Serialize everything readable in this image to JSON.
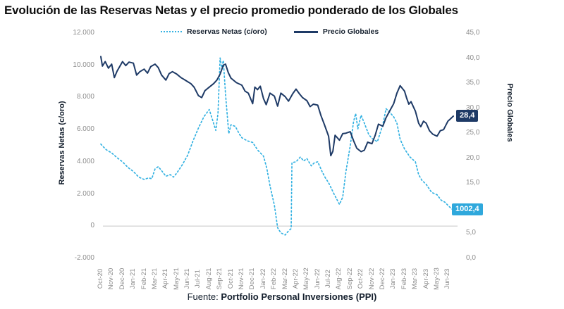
{
  "title": "Evolución de las Reservas Netas y el precio promedio ponderado de los Globales",
  "legend": [
    {
      "label": "Reservas Netas (c/oro)",
      "style": "dashed",
      "color": "#35b2e2"
    },
    {
      "label": "Precio Globales",
      "style": "solid",
      "color": "#1e3a66"
    }
  ],
  "left_axis": {
    "title": "Reservas Netas (c/oro)",
    "tick_labels": [
      "12.000",
      "10.000",
      "8.000",
      "6.000",
      "4.000",
      "2.000",
      "0",
      "-2.000"
    ],
    "tick_values": [
      12000,
      10000,
      8000,
      6000,
      4000,
      2000,
      0,
      -2000
    ]
  },
  "right_axis": {
    "title": "Precio Globales",
    "tick_labels": [
      "45,0",
      "40,0",
      "35,0",
      "30,0",
      "25,0",
      "20,0",
      "15,0",
      "10,0",
      "5,0",
      "0,0"
    ],
    "tick_values": [
      45,
      40,
      35,
      30,
      25,
      20,
      15,
      10,
      5,
      0
    ]
  },
  "end_labels": {
    "precio": {
      "text": "28,4",
      "color": "#1e3a66",
      "value": 28.4
    },
    "reservas": {
      "text": "1002,4",
      "color": "#2fa8dc",
      "value": 1002.4
    }
  },
  "footer": {
    "prefix": "Fuente: ",
    "source": "Portfolio Personal Inversiones (PPI)"
  },
  "colors": {
    "zero_line": "#d9d9d9",
    "tick_text": "#8c8c8c",
    "reservas": "#35b2e2",
    "precio": "#1e3a66"
  },
  "chart_data": {
    "type": "line",
    "title": "Evolución de las Reservas Netas y el precio promedio ponderado de los Globales",
    "grid": "zero-line-only",
    "legend_position": "top",
    "categories": [
      "Oct-20",
      "Nov-20",
      "Dec-20",
      "Jan-21",
      "Feb-21",
      "Mar-21",
      "Apr-21",
      "May-21",
      "Jun-21",
      "Jul-21",
      "Aug-21",
      "Sep-21",
      "Oct-21",
      "Nov-21",
      "Dec-21",
      "Jan-22",
      "Feb-22",
      "Mar-22",
      "Apr-22",
      "May-22",
      "Jun-22",
      "Jul-22",
      "Aug-22",
      "Sep-22",
      "Oct-22",
      "Nov-22",
      "Dec-22",
      "Jan-23",
      "Feb-23",
      "Mar-23",
      "Apr-23",
      "May-23",
      "Jun-23"
    ],
    "left_ylim": [
      -2000,
      12000
    ],
    "right_ylim": [
      0,
      45
    ],
    "series": [
      {
        "name": "Reservas Netas (c/oro)",
        "axis": "left",
        "style": "dashed",
        "color": "#35b2e2",
        "end_label": "1002,4",
        "points": [
          [
            0,
            5100
          ],
          [
            0.2,
            4950
          ],
          [
            0.5,
            4750
          ],
          [
            1,
            4550
          ],
          [
            1.5,
            4250
          ],
          [
            2,
            4000
          ],
          [
            2.5,
            3650
          ],
          [
            3,
            3400
          ],
          [
            3.5,
            3050
          ],
          [
            4,
            2900
          ],
          [
            4.4,
            3000
          ],
          [
            4.7,
            2950
          ],
          [
            5,
            3550
          ],
          [
            5.3,
            3700
          ],
          [
            5.6,
            3450
          ],
          [
            6,
            3100
          ],
          [
            6.4,
            3200
          ],
          [
            6.7,
            3050
          ],
          [
            7,
            3300
          ],
          [
            7.5,
            3800
          ],
          [
            8,
            4400
          ],
          [
            8.5,
            5300
          ],
          [
            9,
            6100
          ],
          [
            9.5,
            6800
          ],
          [
            10,
            7250
          ],
          [
            10.3,
            6600
          ],
          [
            10.6,
            5950
          ],
          [
            10.8,
            7000
          ],
          [
            11,
            10450
          ],
          [
            11.15,
            9850
          ],
          [
            11.3,
            10300
          ],
          [
            11.5,
            8200
          ],
          [
            11.8,
            5750
          ],
          [
            12,
            6300
          ],
          [
            12.4,
            6200
          ],
          [
            12.8,
            5700
          ],
          [
            13,
            5500
          ],
          [
            13.5,
            5300
          ],
          [
            14,
            5200
          ],
          [
            14.5,
            4700
          ],
          [
            15,
            4350
          ],
          [
            15.3,
            3600
          ],
          [
            15.6,
            2500
          ],
          [
            16,
            1300
          ],
          [
            16.3,
            -100
          ],
          [
            16.6,
            -420
          ],
          [
            17,
            -550
          ],
          [
            17.3,
            -300
          ],
          [
            17.55,
            -150
          ],
          [
            17.62,
            3950
          ],
          [
            18,
            4000
          ],
          [
            18.4,
            4300
          ],
          [
            18.7,
            4050
          ],
          [
            19,
            4200
          ],
          [
            19.4,
            3750
          ],
          [
            19.7,
            3950
          ],
          [
            20,
            4000
          ],
          [
            20.4,
            3400
          ],
          [
            20.7,
            3000
          ],
          [
            21,
            2700
          ],
          [
            21.5,
            2000
          ],
          [
            22,
            1350
          ],
          [
            22.3,
            1800
          ],
          [
            22.6,
            3400
          ],
          [
            23,
            5000
          ],
          [
            23.3,
            6500
          ],
          [
            23.5,
            7000
          ],
          [
            23.7,
            6050
          ],
          [
            24,
            6900
          ],
          [
            24.3,
            6400
          ],
          [
            24.7,
            5700
          ],
          [
            25,
            5450
          ],
          [
            25.5,
            5250
          ],
          [
            26,
            6300
          ],
          [
            26.3,
            7300
          ],
          [
            26.6,
            7100
          ],
          [
            27,
            6800
          ],
          [
            27.3,
            6400
          ],
          [
            27.6,
            5400
          ],
          [
            28,
            4800
          ],
          [
            28.5,
            4300
          ],
          [
            29,
            4000
          ],
          [
            29.3,
            3200
          ],
          [
            29.6,
            2850
          ],
          [
            30,
            2600
          ],
          [
            30.5,
            2100
          ],
          [
            31,
            1950
          ],
          [
            31.4,
            1600
          ],
          [
            31.7,
            1500
          ],
          [
            32,
            1300
          ],
          [
            32.3,
            1100
          ],
          [
            32.5,
            1002
          ]
        ]
      },
      {
        "name": "Precio Globales",
        "axis": "right",
        "style": "solid",
        "color": "#1e3a66",
        "end_label": "28,4",
        "points": [
          [
            0,
            40.3
          ],
          [
            0.15,
            38.4
          ],
          [
            0.4,
            39.3
          ],
          [
            0.7,
            38.0
          ],
          [
            1,
            38.8
          ],
          [
            1.25,
            36.1
          ],
          [
            1.5,
            37.4
          ],
          [
            2,
            39.3
          ],
          [
            2.3,
            38.5
          ],
          [
            2.6,
            39.2
          ],
          [
            3,
            39.0
          ],
          [
            3.3,
            36.6
          ],
          [
            3.6,
            37.3
          ],
          [
            4,
            37.8
          ],
          [
            4.3,
            37.0
          ],
          [
            4.6,
            38.3
          ],
          [
            5,
            38.8
          ],
          [
            5.3,
            38.1
          ],
          [
            5.6,
            36.6
          ],
          [
            6,
            35.6
          ],
          [
            6.3,
            36.9
          ],
          [
            6.6,
            37.3
          ],
          [
            7,
            36.8
          ],
          [
            7.4,
            36.1
          ],
          [
            7.7,
            35.7
          ],
          [
            8,
            35.3
          ],
          [
            8.3,
            34.9
          ],
          [
            8.6,
            34.2
          ],
          [
            9,
            32.5
          ],
          [
            9.3,
            32.1
          ],
          [
            9.6,
            33.5
          ],
          [
            10,
            34.2
          ],
          [
            10.4,
            34.9
          ],
          [
            10.7,
            35.6
          ],
          [
            11,
            36.8
          ],
          [
            11.3,
            38.6
          ],
          [
            11.5,
            38.8
          ],
          [
            11.75,
            37.1
          ],
          [
            12,
            36.0
          ],
          [
            12.5,
            35.1
          ],
          [
            13,
            34.6
          ],
          [
            13.3,
            33.4
          ],
          [
            13.6,
            33.0
          ],
          [
            14,
            30.9
          ],
          [
            14.2,
            34.2
          ],
          [
            14.45,
            33.7
          ],
          [
            14.7,
            34.4
          ],
          [
            15,
            31.9
          ],
          [
            15.25,
            30.7
          ],
          [
            15.6,
            33.0
          ],
          [
            16,
            32.4
          ],
          [
            16.3,
            30.4
          ],
          [
            16.6,
            33.0
          ],
          [
            17,
            32.3
          ],
          [
            17.3,
            31.4
          ],
          [
            17.7,
            32.9
          ],
          [
            18,
            33.8
          ],
          [
            18.3,
            32.9
          ],
          [
            18.6,
            32.1
          ],
          [
            19,
            31.5
          ],
          [
            19.3,
            30.3
          ],
          [
            19.6,
            30.8
          ],
          [
            20,
            30.6
          ],
          [
            20.3,
            28.5
          ],
          [
            20.6,
            26.8
          ],
          [
            21,
            24.4
          ],
          [
            21.2,
            20.5
          ],
          [
            21.4,
            21.4
          ],
          [
            21.6,
            24.6
          ],
          [
            22,
            23.6
          ],
          [
            22.3,
            24.9
          ],
          [
            22.6,
            25.0
          ],
          [
            23,
            25.3
          ],
          [
            23.3,
            23.5
          ],
          [
            23.6,
            22.0
          ],
          [
            24,
            21.3
          ],
          [
            24.3,
            21.6
          ],
          [
            24.6,
            23.2
          ],
          [
            25,
            22.9
          ],
          [
            25.3,
            24.6
          ],
          [
            25.6,
            26.8
          ],
          [
            26,
            26.4
          ],
          [
            26.3,
            28.1
          ],
          [
            26.6,
            29.3
          ],
          [
            27,
            30.9
          ],
          [
            27.3,
            33.0
          ],
          [
            27.6,
            34.5
          ],
          [
            28,
            33.4
          ],
          [
            28.2,
            32.0
          ],
          [
            28.4,
            30.8
          ],
          [
            28.6,
            31.3
          ],
          [
            29,
            29.4
          ],
          [
            29.3,
            27.0
          ],
          [
            29.5,
            26.3
          ],
          [
            29.75,
            27.4
          ],
          [
            30,
            27.0
          ],
          [
            30.3,
            25.5
          ],
          [
            30.6,
            24.8
          ],
          [
            31,
            24.4
          ],
          [
            31.3,
            25.5
          ],
          [
            31.6,
            25.7
          ],
          [
            32,
            27.4
          ],
          [
            32.25,
            27.9
          ],
          [
            32.5,
            28.4
          ]
        ]
      }
    ]
  }
}
